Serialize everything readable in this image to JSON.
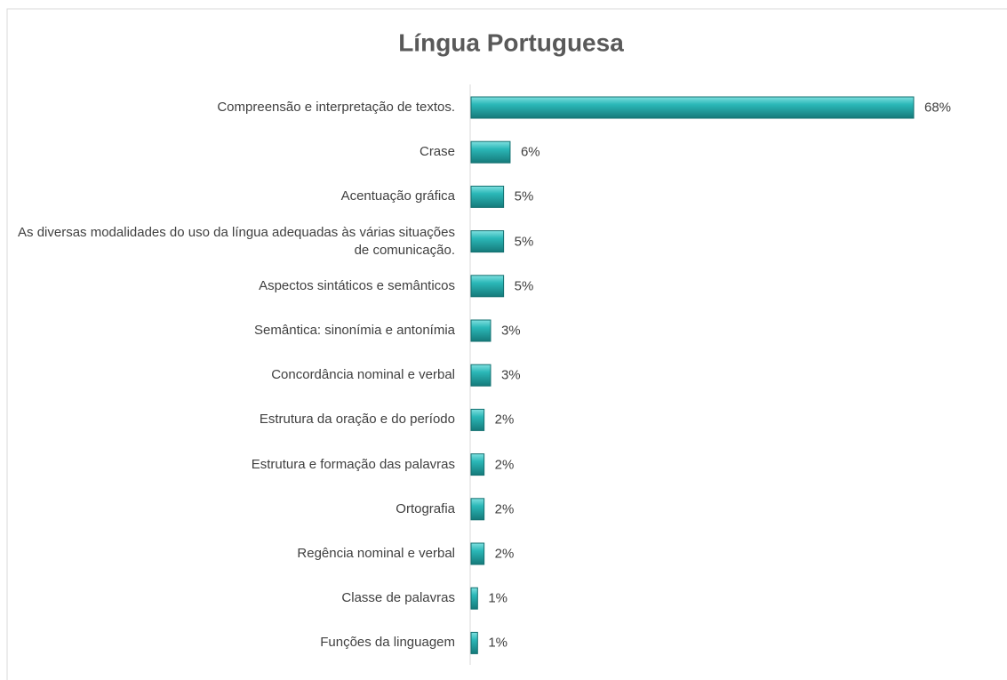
{
  "chart_data": {
    "type": "bar",
    "orientation": "horizontal",
    "title": "Língua Portuguesa",
    "categories": [
      "Compreensão e interpretação de textos.",
      "Crase",
      "Acentuação gráfica",
      "As diversas modalidades do uso da língua adequadas às várias situações de comunicação.",
      "Aspectos sintáticos e semânticos",
      "Semântica: sinonímia e antonímia",
      "Concordância nominal e verbal",
      "Estrutura da oração e do período",
      "Estrutura e formação das palavras",
      "Ortografia",
      "Regência nominal e verbal",
      "Classe de palavras",
      "Funções da linguagem"
    ],
    "values": [
      68,
      6,
      5,
      5,
      5,
      3,
      3,
      2,
      2,
      2,
      2,
      1,
      1
    ],
    "value_labels": [
      "68%",
      "6%",
      "5%",
      "5%",
      "5%",
      "3%",
      "3%",
      "2%",
      "2%",
      "2%",
      "2%",
      "1%",
      "1%"
    ],
    "color": "#2bb8b8"
  }
}
